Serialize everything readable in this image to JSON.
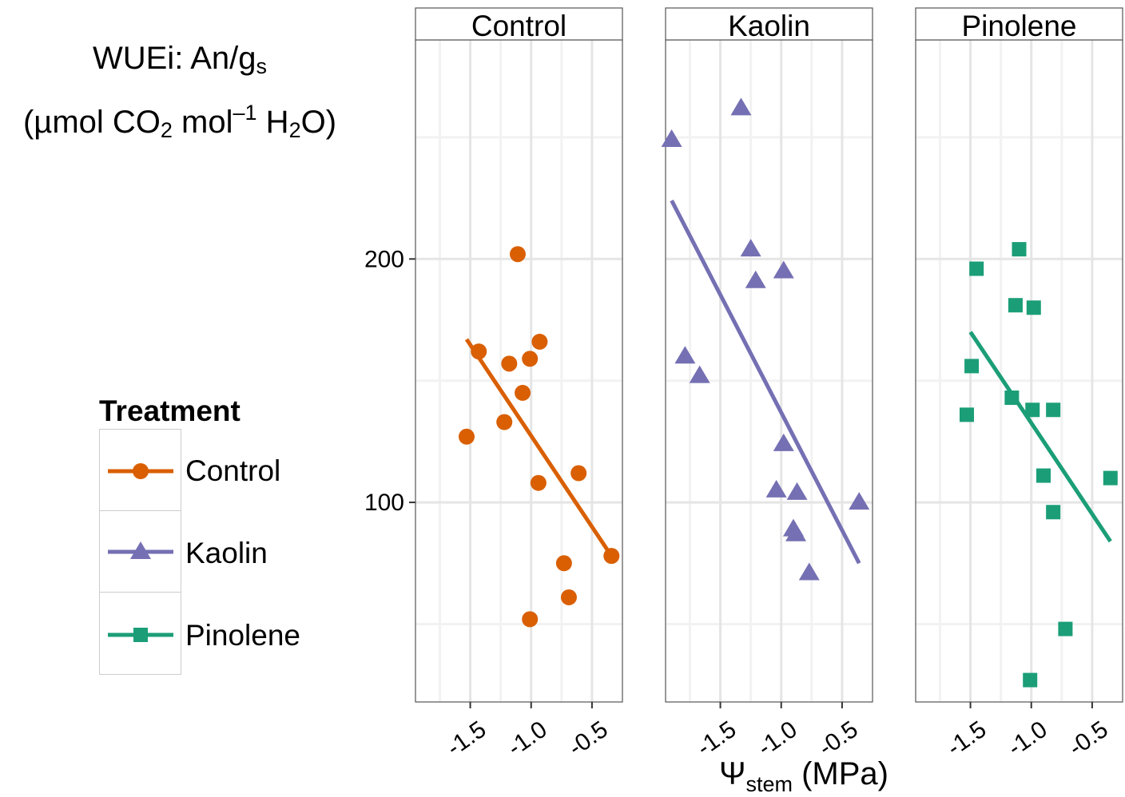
{
  "y_title": {
    "line1_main": "WUEi: An/g",
    "line1_sub": "s",
    "line2_a": "(µmol CO",
    "line2_sub1": "2",
    "line2_b": " mol",
    "line2_sup": "–1",
    "line2_c": " H",
    "line2_sub2": "2",
    "line2_d": "O)"
  },
  "x_title": {
    "main": "Ψ",
    "sub": "stem",
    "rest": " (MPa)"
  },
  "legend": {
    "title": "Treatment",
    "items": [
      {
        "label": "Control",
        "color": "#D95F02",
        "shape": "circle"
      },
      {
        "label": "Kaolin",
        "color": "#7570B3",
        "shape": "triangle"
      },
      {
        "label": "Pinolene",
        "color": "#1B9E77",
        "shape": "square"
      }
    ]
  },
  "chart_data": {
    "type": "scatter",
    "xlim": [
      -1.95,
      -0.25
    ],
    "ylim": [
      18,
      290
    ],
    "x_ticks": [
      -1.5,
      -1.0,
      -0.5
    ],
    "x_tick_labels": [
      "-1.5",
      "-1.0",
      "-0.5"
    ],
    "y_ticks": [
      100,
      200
    ],
    "y_tick_labels": [
      "100",
      "200"
    ],
    "grid": true,
    "legend_position": "left",
    "facets": [
      {
        "strip": "Control",
        "color": "#D95F02",
        "shape": "circle",
        "points": [
          {
            "x": -1.53,
            "y": 127
          },
          {
            "x": -1.43,
            "y": 162
          },
          {
            "x": -1.22,
            "y": 133
          },
          {
            "x": -1.18,
            "y": 157
          },
          {
            "x": -1.11,
            "y": 202
          },
          {
            "x": -1.07,
            "y": 145
          },
          {
            "x": -1.01,
            "y": 159
          },
          {
            "x": -0.94,
            "y": 108
          },
          {
            "x": -0.93,
            "y": 166
          },
          {
            "x": -0.73,
            "y": 75
          },
          {
            "x": -0.69,
            "y": 61
          },
          {
            "x": -0.61,
            "y": 112
          },
          {
            "x": -1.01,
            "y": 52
          },
          {
            "x": -0.34,
            "y": 78
          }
        ],
        "fit": {
          "x": [
            -1.53,
            -0.34
          ],
          "y": [
            167,
            78
          ]
        }
      },
      {
        "strip": "Kaolin",
        "color": "#7570B3",
        "shape": "triangle",
        "points": [
          {
            "x": -1.9,
            "y": 249
          },
          {
            "x": -1.33,
            "y": 262
          },
          {
            "x": -1.79,
            "y": 160
          },
          {
            "x": -1.67,
            "y": 152
          },
          {
            "x": -1.25,
            "y": 204
          },
          {
            "x": -1.21,
            "y": 191
          },
          {
            "x": -0.98,
            "y": 195
          },
          {
            "x": -0.98,
            "y": 124
          },
          {
            "x": -1.04,
            "y": 105
          },
          {
            "x": -0.87,
            "y": 104
          },
          {
            "x": -0.9,
            "y": 89
          },
          {
            "x": -0.88,
            "y": 87
          },
          {
            "x": -0.77,
            "y": 71
          },
          {
            "x": -0.36,
            "y": 100
          }
        ],
        "fit": {
          "x": [
            -1.9,
            -0.36
          ],
          "y": [
            224,
            75
          ]
        }
      },
      {
        "strip": "Pinolene",
        "color": "#1B9E77",
        "shape": "square",
        "points": [
          {
            "x": -1.1,
            "y": 204
          },
          {
            "x": -1.45,
            "y": 196
          },
          {
            "x": -1.13,
            "y": 181
          },
          {
            "x": -0.98,
            "y": 180
          },
          {
            "x": -1.49,
            "y": 156
          },
          {
            "x": -1.16,
            "y": 143
          },
          {
            "x": -1.53,
            "y": 136
          },
          {
            "x": -0.99,
            "y": 138
          },
          {
            "x": -0.82,
            "y": 138
          },
          {
            "x": -0.9,
            "y": 111
          },
          {
            "x": -0.82,
            "y": 96
          },
          {
            "x": -0.35,
            "y": 110
          },
          {
            "x": -0.72,
            "y": 48
          },
          {
            "x": -1.01,
            "y": 27
          }
        ],
        "fit": {
          "x": [
            -1.5,
            -0.35
          ],
          "y": [
            170,
            84
          ]
        }
      }
    ]
  }
}
